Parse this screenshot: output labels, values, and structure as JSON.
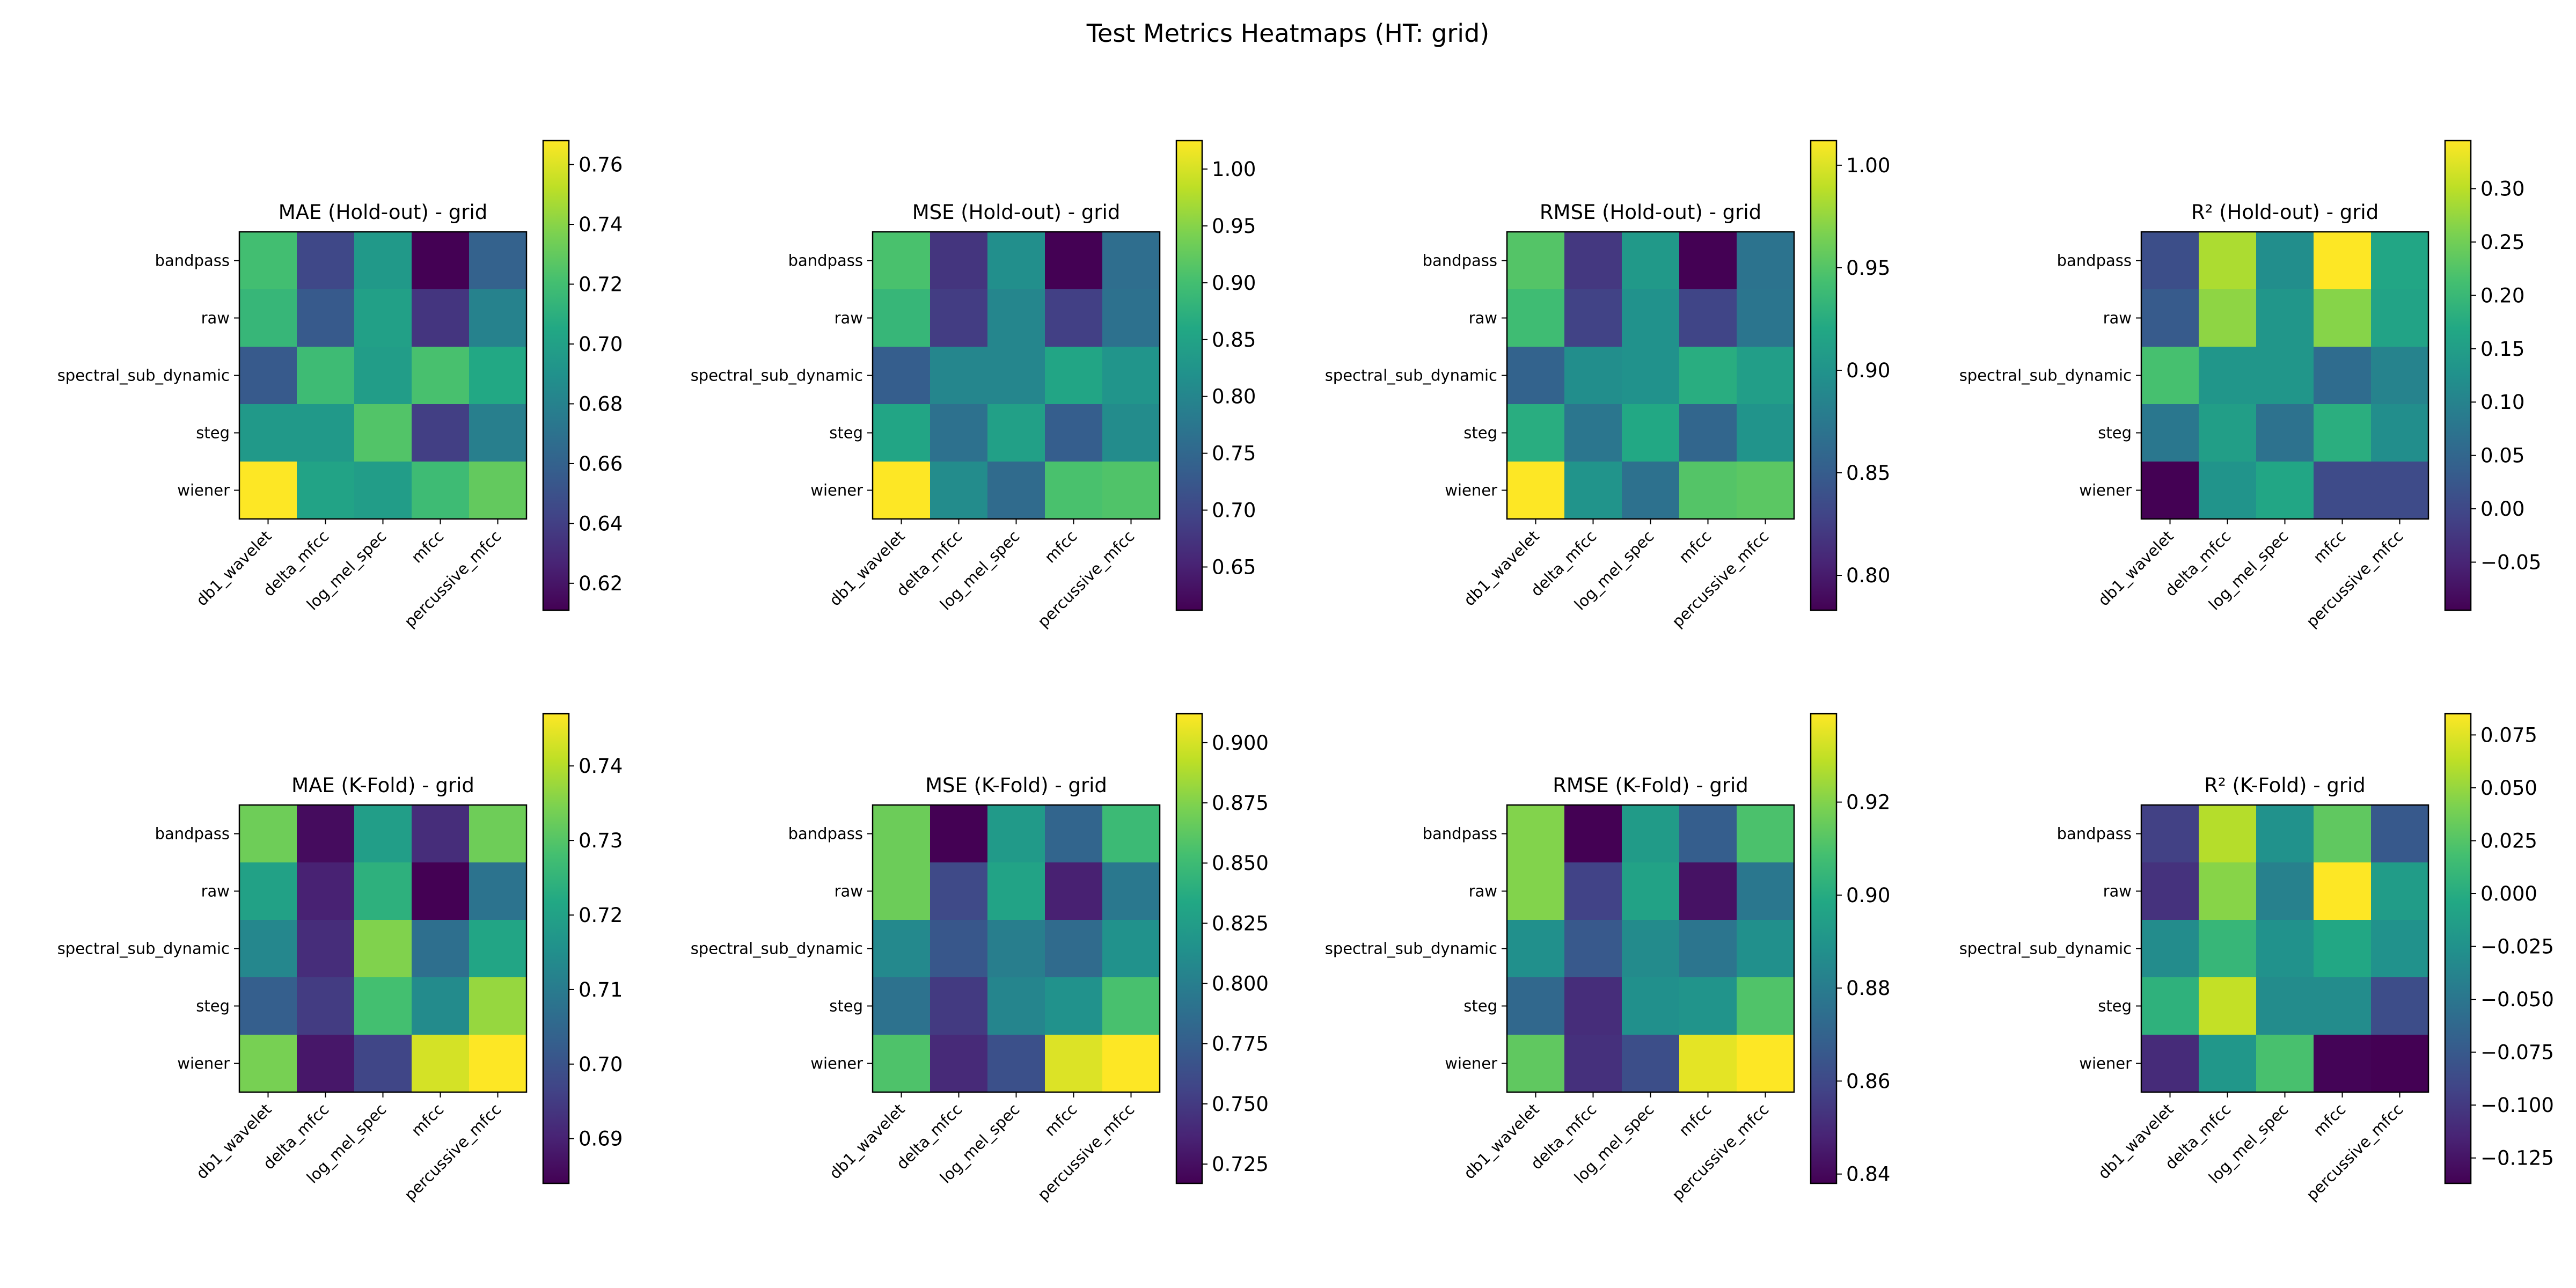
{
  "figure": {
    "suptitle": "Test Metrics Heatmaps (HT: grid)"
  },
  "rows": [
    "bandpass",
    "raw",
    "spectral_sub_dynamic",
    "steg",
    "wiener"
  ],
  "columns": [
    "db1_wavelet",
    "delta_mfcc",
    "log_mel_spec",
    "mfcc",
    "percussive_mfcc"
  ],
  "colormap": {
    "name": "viridis",
    "stops": [
      "#440154",
      "#482475",
      "#414487",
      "#355f8d",
      "#2a788e",
      "#21918c",
      "#22a884",
      "#44bf70",
      "#7ad151",
      "#bddf26",
      "#fde725"
    ]
  },
  "chart_data": [
    {
      "type": "heatmap",
      "title": "MAE (Hold-out) - grid",
      "vmin": 0.611,
      "vmax": 0.768,
      "colorbar_ticks": [
        "0.62",
        "0.64",
        "0.66",
        "0.68",
        "0.70",
        "0.72",
        "0.74",
        "0.76"
      ],
      "values": [
        [
          0.72,
          0.645,
          0.695,
          0.611,
          0.66
        ],
        [
          0.715,
          0.655,
          0.7,
          0.635,
          0.68
        ],
        [
          0.655,
          0.718,
          0.698,
          0.722,
          0.705
        ],
        [
          0.695,
          0.695,
          0.725,
          0.64,
          0.678
        ],
        [
          0.768,
          0.702,
          0.698,
          0.718,
          0.73
        ]
      ]
    },
    {
      "type": "heatmap",
      "title": "MSE (Hold-out) - grid",
      "vmin": 0.612,
      "vmax": 1.025,
      "colorbar_ticks": [
        "0.65",
        "0.70",
        "0.75",
        "0.80",
        "0.85",
        "0.90",
        "0.95",
        "1.00"
      ],
      "values": [
        [
          0.905,
          0.675,
          0.815,
          0.612,
          0.76
        ],
        [
          0.885,
          0.685,
          0.8,
          0.69,
          0.765
        ],
        [
          0.735,
          0.8,
          0.8,
          0.855,
          0.825
        ],
        [
          0.855,
          0.765,
          0.845,
          0.735,
          0.81
        ],
        [
          1.025,
          0.81,
          0.755,
          0.905,
          0.91
        ]
      ]
    },
    {
      "type": "heatmap",
      "title": "RMSE (Hold-out) - grid",
      "vmin": 0.783,
      "vmax": 1.012,
      "colorbar_ticks": [
        "0.80",
        "0.85",
        "0.90",
        "0.95",
        "1.00"
      ],
      "values": [
        [
          0.95,
          0.82,
          0.905,
          0.783,
          0.87
        ],
        [
          0.94,
          0.828,
          0.898,
          0.83,
          0.872
        ],
        [
          0.855,
          0.895,
          0.898,
          0.925,
          0.91
        ],
        [
          0.925,
          0.873,
          0.92,
          0.858,
          0.9
        ],
        [
          1.012,
          0.9,
          0.868,
          0.95,
          0.953
        ]
      ]
    },
    {
      "type": "heatmap",
      "title": "R² (Hold-out) - grid",
      "vmin": -0.095,
      "vmax": 0.345,
      "colorbar_ticks": [
        "−0.05",
        "0.00",
        "0.05",
        "0.10",
        "0.15",
        "0.20",
        "0.25",
        "0.30"
      ],
      "values": [
        [
          0.01,
          0.29,
          0.12,
          0.345,
          0.165
        ],
        [
          0.03,
          0.27,
          0.135,
          0.265,
          0.16
        ],
        [
          0.215,
          0.135,
          0.135,
          0.06,
          0.1
        ],
        [
          0.08,
          0.15,
          0.07,
          0.18,
          0.12
        ],
        [
          -0.095,
          0.13,
          0.165,
          0.005,
          0.005
        ]
      ]
    },
    {
      "type": "heatmap",
      "title": "MAE (K-Fold) - grid",
      "vmin": 0.684,
      "vmax": 0.747,
      "colorbar_ticks": [
        "0.69",
        "0.70",
        "0.71",
        "0.72",
        "0.73",
        "0.74"
      ],
      "values": [
        [
          0.733,
          0.686,
          0.719,
          0.692,
          0.733
        ],
        [
          0.72,
          0.69,
          0.724,
          0.684,
          0.708
        ],
        [
          0.713,
          0.692,
          0.735,
          0.707,
          0.721
        ],
        [
          0.703,
          0.695,
          0.728,
          0.714,
          0.737
        ],
        [
          0.734,
          0.688,
          0.697,
          0.743,
          0.747
        ]
      ]
    },
    {
      "type": "heatmap",
      "title": "MSE (K-Fold) - grid",
      "vmin": 0.717,
      "vmax": 0.912,
      "colorbar_ticks": [
        "0.725",
        "0.750",
        "0.775",
        "0.800",
        "0.825",
        "0.850",
        "0.875",
        "0.900"
      ],
      "values": [
        [
          0.868,
          0.717,
          0.822,
          0.78,
          0.849
        ],
        [
          0.868,
          0.76,
          0.83,
          0.735,
          0.795
        ],
        [
          0.808,
          0.77,
          0.8,
          0.785,
          0.815
        ],
        [
          0.79,
          0.75,
          0.805,
          0.815,
          0.855
        ],
        [
          0.857,
          0.74,
          0.765,
          0.902,
          0.912
        ]
      ]
    },
    {
      "type": "heatmap",
      "title": "RMSE (K-Fold) - grid",
      "vmin": 0.838,
      "vmax": 0.939,
      "colorbar_ticks": [
        "0.84",
        "0.86",
        "0.88",
        "0.90",
        "0.92"
      ],
      "values": [
        [
          0.92,
          0.838,
          0.893,
          0.868,
          0.91
        ],
        [
          0.92,
          0.858,
          0.896,
          0.843,
          0.878
        ],
        [
          0.888,
          0.866,
          0.886,
          0.877,
          0.888
        ],
        [
          0.872,
          0.851,
          0.888,
          0.89,
          0.911
        ],
        [
          0.914,
          0.852,
          0.862,
          0.935,
          0.939
        ]
      ]
    },
    {
      "type": "heatmap",
      "title": "R² (K-Fold) - grid",
      "vmin": -0.137,
      "vmax": 0.085,
      "colorbar_ticks": [
        "−0.125",
        "−0.100",
        "−0.075",
        "−0.050",
        "−0.025",
        "0.000",
        "0.025",
        "0.050",
        "0.075"
      ],
      "values": [
        [
          -0.095,
          0.06,
          -0.025,
          0.03,
          -0.075
        ],
        [
          -0.105,
          0.045,
          -0.04,
          0.085,
          -0.015
        ],
        [
          -0.03,
          0.01,
          -0.025,
          -0.005,
          -0.025
        ],
        [
          0.005,
          0.065,
          -0.03,
          -0.03,
          -0.085
        ],
        [
          -0.11,
          -0.02,
          0.02,
          -0.135,
          -0.137
        ]
      ]
    }
  ]
}
